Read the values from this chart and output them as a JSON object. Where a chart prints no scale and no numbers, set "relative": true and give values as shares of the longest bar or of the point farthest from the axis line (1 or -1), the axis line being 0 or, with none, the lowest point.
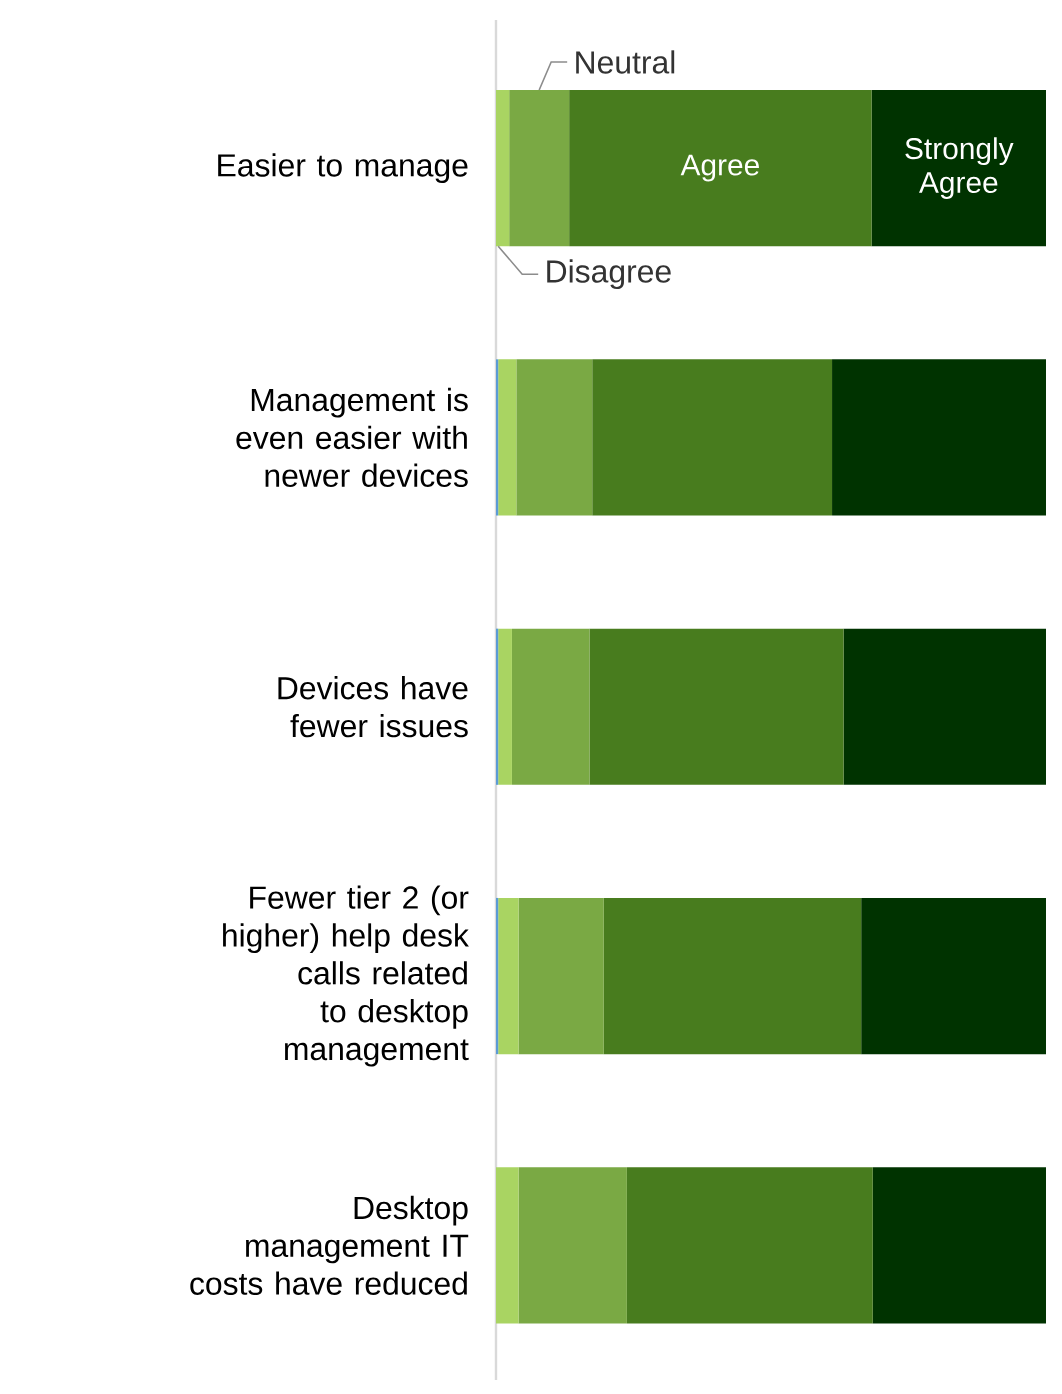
{
  "chart_data": {
    "type": "bar",
    "orientation": "horizontal",
    "stacked": true,
    "relative": true,
    "legend": false,
    "categories": [
      "Easier to manage",
      "Management is even easier with newer devices",
      "Devices have fewer issues",
      "Fewer tier 2 (or higher) help desk calls related to desktop management",
      "Desktop management IT costs have reduced"
    ],
    "series": [
      {
        "color": "#5b9bd5",
        "values": [
          0,
          0.004,
          0.004,
          0.004,
          0
        ]
      },
      {
        "name": "Disagree",
        "color": "#a9d462",
        "values": [
          0.024,
          0.033,
          0.025,
          0.037,
          0.041
        ]
      },
      {
        "name": "Neutral",
        "color": "#7aa944",
        "values": [
          0.109,
          0.138,
          0.141,
          0.155,
          0.197
        ]
      },
      {
        "name": "Agree",
        "color": "#487c1e",
        "values": [
          0.55,
          0.436,
          0.462,
          0.468,
          0.447
        ]
      },
      {
        "name": "Strongly Agree",
        "color": "#003300",
        "values": [
          0.317,
          0.389,
          0.368,
          0.336,
          0.315
        ]
      }
    ]
  }
}
